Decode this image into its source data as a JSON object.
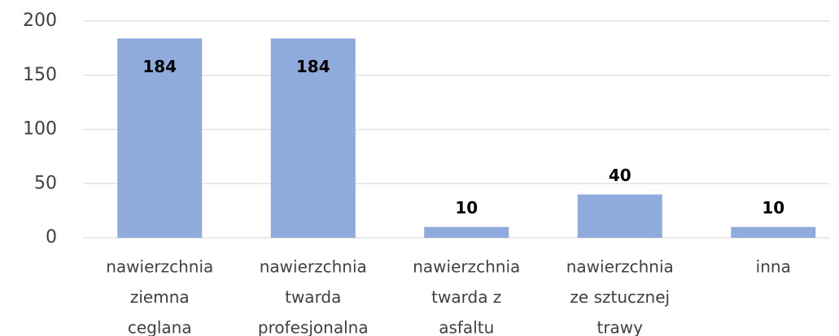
{
  "chart_data": {
    "type": "bar",
    "categories": [
      [
        "nawierzchnia",
        "ziemna",
        "ceglana"
      ],
      [
        "nawierzchnia",
        "twarda",
        "profesjonalna"
      ],
      [
        "nawierzchnia",
        "twarda z",
        "asfaltu"
      ],
      [
        "nawierzchnia",
        "ze sztucznej",
        "trawy"
      ],
      [
        "inna"
      ]
    ],
    "values": [
      184,
      184,
      10,
      40,
      10
    ],
    "color": "#8faadc",
    "ylim": [
      0,
      200
    ],
    "yticks": [
      0,
      50,
      100,
      150,
      200
    ],
    "grid": true
  }
}
